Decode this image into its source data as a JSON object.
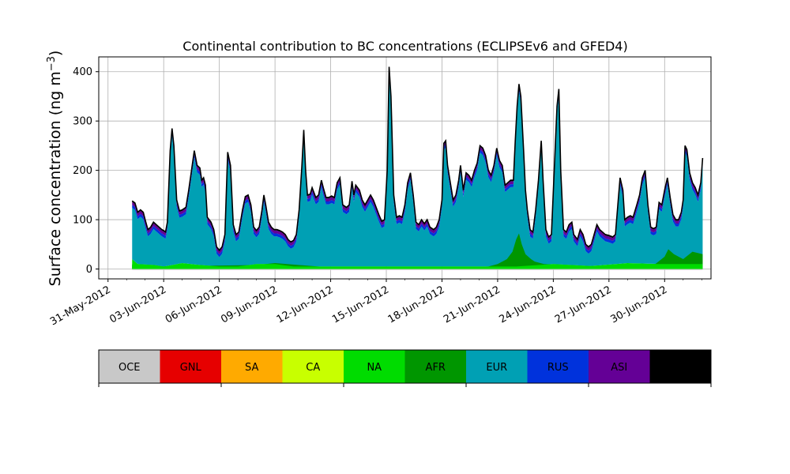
{
  "chart_data": {
    "type": "area",
    "stacked": true,
    "title": "Continental contribution to BC concentrations (ECLIPSEv6 and GFED4)",
    "ylabel": "Surface concentration (ng m",
    "ylabel_unit_exponent": "−3",
    "ylabel_close": ")",
    "xlabel": "",
    "ylim": [
      -20,
      430
    ],
    "yticks": [
      0,
      100,
      200,
      300,
      400
    ],
    "xlim_days": [
      -0.5,
      32.5
    ],
    "xtick_days": [
      0,
      3,
      6,
      9,
      12,
      15,
      18,
      21,
      24,
      27,
      30
    ],
    "xtick_labels": [
      "31-May-2012",
      "03-Jun-2012",
      "06-Jun-2012",
      "09-Jun-2012",
      "12-Jun-2012",
      "15-Jun-2012",
      "18-Jun-2012",
      "21-Jun-2012",
      "24-Jun-2012",
      "27-Jun-2012",
      "30-Jun-2012"
    ],
    "grid": true,
    "total_points": [
      [
        1.3,
        138
      ],
      [
        1.45,
        134
      ],
      [
        1.6,
        115
      ],
      [
        1.75,
        120
      ],
      [
        1.9,
        115
      ],
      [
        2.0,
        100
      ],
      [
        2.15,
        80
      ],
      [
        2.3,
        85
      ],
      [
        2.45,
        95
      ],
      [
        2.6,
        90
      ],
      [
        2.75,
        85
      ],
      [
        2.9,
        80
      ],
      [
        3.0,
        78
      ],
      [
        3.1,
        75
      ],
      [
        3.2,
        95
      ],
      [
        3.35,
        240
      ],
      [
        3.45,
        285
      ],
      [
        3.55,
        250
      ],
      [
        3.7,
        140
      ],
      [
        3.85,
        118
      ],
      [
        4.0,
        120
      ],
      [
        4.2,
        125
      ],
      [
        4.35,
        160
      ],
      [
        4.5,
        200
      ],
      [
        4.65,
        240
      ],
      [
        4.8,
        210
      ],
      [
        4.95,
        205
      ],
      [
        5.05,
        180
      ],
      [
        5.15,
        185
      ],
      [
        5.25,
        170
      ],
      [
        5.35,
        105
      ],
      [
        5.55,
        95
      ],
      [
        5.7,
        80
      ],
      [
        5.85,
        45
      ],
      [
        6.0,
        38
      ],
      [
        6.15,
        45
      ],
      [
        6.3,
        70
      ],
      [
        6.45,
        237
      ],
      [
        6.6,
        210
      ],
      [
        6.75,
        90
      ],
      [
        6.9,
        70
      ],
      [
        7.05,
        75
      ],
      [
        7.25,
        120
      ],
      [
        7.4,
        147
      ],
      [
        7.55,
        150
      ],
      [
        7.7,
        130
      ],
      [
        7.85,
        85
      ],
      [
        8.0,
        78
      ],
      [
        8.15,
        85
      ],
      [
        8.3,
        120
      ],
      [
        8.4,
        150
      ],
      [
        8.5,
        130
      ],
      [
        8.65,
        95
      ],
      [
        8.8,
        85
      ],
      [
        8.95,
        80
      ],
      [
        9.1,
        80
      ],
      [
        9.25,
        78
      ],
      [
        9.4,
        75
      ],
      [
        9.55,
        70
      ],
      [
        9.7,
        60
      ],
      [
        9.85,
        55
      ],
      [
        10.0,
        58
      ],
      [
        10.15,
        70
      ],
      [
        10.3,
        120
      ],
      [
        10.45,
        210
      ],
      [
        10.55,
        282
      ],
      [
        10.65,
        200
      ],
      [
        10.75,
        150
      ],
      [
        10.9,
        152
      ],
      [
        11.0,
        165
      ],
      [
        11.2,
        145
      ],
      [
        11.35,
        150
      ],
      [
        11.5,
        180
      ],
      [
        11.6,
        165
      ],
      [
        11.75,
        145
      ],
      [
        11.9,
        145
      ],
      [
        12.05,
        148
      ],
      [
        12.2,
        145
      ],
      [
        12.35,
        175
      ],
      [
        12.5,
        185
      ],
      [
        12.65,
        130
      ],
      [
        12.85,
        125
      ],
      [
        13.0,
        130
      ],
      [
        13.15,
        178
      ],
      [
        13.25,
        150
      ],
      [
        13.35,
        170
      ],
      [
        13.55,
        160
      ],
      [
        13.7,
        140
      ],
      [
        13.85,
        130
      ],
      [
        14.0,
        140
      ],
      [
        14.15,
        150
      ],
      [
        14.3,
        140
      ],
      [
        14.45,
        125
      ],
      [
        14.6,
        110
      ],
      [
        14.75,
        97
      ],
      [
        14.9,
        100
      ],
      [
        15.05,
        200
      ],
      [
        15.15,
        410
      ],
      [
        15.25,
        350
      ],
      [
        15.4,
        150
      ],
      [
        15.55,
        105
      ],
      [
        15.7,
        108
      ],
      [
        15.85,
        105
      ],
      [
        16.0,
        130
      ],
      [
        16.15,
        175
      ],
      [
        16.3,
        195
      ],
      [
        16.45,
        150
      ],
      [
        16.6,
        95
      ],
      [
        16.75,
        90
      ],
      [
        16.9,
        100
      ],
      [
        17.05,
        92
      ],
      [
        17.2,
        100
      ],
      [
        17.35,
        85
      ],
      [
        17.55,
        80
      ],
      [
        17.7,
        85
      ],
      [
        17.85,
        100
      ],
      [
        18.0,
        140
      ],
      [
        18.1,
        255
      ],
      [
        18.2,
        260
      ],
      [
        18.3,
        210
      ],
      [
        18.45,
        175
      ],
      [
        18.6,
        140
      ],
      [
        18.75,
        150
      ],
      [
        18.9,
        180
      ],
      [
        19.0,
        210
      ],
      [
        19.15,
        160
      ],
      [
        19.3,
        195
      ],
      [
        19.45,
        190
      ],
      [
        19.6,
        180
      ],
      [
        19.75,
        200
      ],
      [
        19.9,
        215
      ],
      [
        20.05,
        250
      ],
      [
        20.2,
        245
      ],
      [
        20.35,
        230
      ],
      [
        20.5,
        200
      ],
      [
        20.65,
        190
      ],
      [
        20.8,
        210
      ],
      [
        20.95,
        245
      ],
      [
        21.1,
        220
      ],
      [
        21.25,
        210
      ],
      [
        21.4,
        170
      ],
      [
        21.55,
        175
      ],
      [
        21.7,
        180
      ],
      [
        21.85,
        180
      ],
      [
        21.95,
        260
      ],
      [
        22.05,
        330
      ],
      [
        22.15,
        375
      ],
      [
        22.25,
        350
      ],
      [
        22.4,
        240
      ],
      [
        22.5,
        160
      ],
      [
        22.6,
        120
      ],
      [
        22.75,
        80
      ],
      [
        22.9,
        75
      ],
      [
        23.05,
        120
      ],
      [
        23.2,
        180
      ],
      [
        23.35,
        260
      ],
      [
        23.45,
        180
      ],
      [
        23.6,
        80
      ],
      [
        23.75,
        65
      ],
      [
        23.9,
        70
      ],
      [
        24.05,
        200
      ],
      [
        24.2,
        330
      ],
      [
        24.3,
        365
      ],
      [
        24.4,
        200
      ],
      [
        24.55,
        80
      ],
      [
        24.7,
        75
      ],
      [
        24.85,
        90
      ],
      [
        25.0,
        95
      ],
      [
        25.1,
        70
      ],
      [
        25.3,
        60
      ],
      [
        25.45,
        80
      ],
      [
        25.6,
        70
      ],
      [
        25.75,
        50
      ],
      [
        25.9,
        45
      ],
      [
        26.05,
        50
      ],
      [
        26.2,
        70
      ],
      [
        26.35,
        90
      ],
      [
        26.5,
        80
      ],
      [
        26.65,
        75
      ],
      [
        26.8,
        70
      ],
      [
        27.0,
        68
      ],
      [
        27.2,
        65
      ],
      [
        27.35,
        70
      ],
      [
        27.5,
        140
      ],
      [
        27.6,
        185
      ],
      [
        27.75,
        160
      ],
      [
        27.85,
        100
      ],
      [
        28.0,
        105
      ],
      [
        28.15,
        108
      ],
      [
        28.3,
        105
      ],
      [
        28.5,
        130
      ],
      [
        28.65,
        150
      ],
      [
        28.8,
        185
      ],
      [
        28.95,
        200
      ],
      [
        29.1,
        130
      ],
      [
        29.25,
        85
      ],
      [
        29.4,
        82
      ],
      [
        29.55,
        85
      ],
      [
        29.7,
        135
      ],
      [
        29.85,
        130
      ],
      [
        30.0,
        160
      ],
      [
        30.15,
        185
      ],
      [
        30.3,
        145
      ],
      [
        30.45,
        110
      ],
      [
        30.6,
        100
      ],
      [
        30.75,
        100
      ],
      [
        30.9,
        115
      ],
      [
        31.0,
        140
      ],
      [
        31.1,
        250
      ],
      [
        31.2,
        242
      ],
      [
        31.35,
        195
      ],
      [
        31.5,
        175
      ],
      [
        31.65,
        165
      ],
      [
        31.8,
        150
      ],
      [
        31.95,
        175
      ],
      [
        32.05,
        225
      ]
    ],
    "lower_layers": {
      "na": [
        [
          1.3,
          20
        ],
        [
          1.6,
          10
        ],
        [
          2.5,
          8
        ],
        [
          3.0,
          5
        ],
        [
          4.0,
          12
        ],
        [
          5.0,
          8
        ],
        [
          6.0,
          5
        ],
        [
          7.0,
          5
        ],
        [
          8.0,
          10
        ],
        [
          9.0,
          10
        ],
        [
          10.0,
          5
        ],
        [
          12.0,
          5
        ],
        [
          14.0,
          5
        ],
        [
          16.0,
          5
        ],
        [
          18.0,
          5
        ],
        [
          20.0,
          5
        ],
        [
          22.0,
          5
        ],
        [
          24.0,
          10
        ],
        [
          26.0,
          6
        ],
        [
          28.0,
          12
        ],
        [
          30.0,
          10
        ],
        [
          31.5,
          15
        ],
        [
          32.05,
          20
        ]
      ],
      "afr": [
        [
          1.3,
          8
        ],
        [
          2.0,
          4
        ],
        [
          4.0,
          6
        ],
        [
          8.0,
          8
        ],
        [
          9.0,
          12
        ],
        [
          12.0,
          3
        ],
        [
          16.0,
          3
        ],
        [
          19.0,
          3
        ],
        [
          20.5,
          5
        ],
        [
          21.0,
          10
        ],
        [
          21.5,
          20
        ],
        [
          21.8,
          35
        ],
        [
          22.0,
          60
        ],
        [
          22.15,
          72
        ],
        [
          22.3,
          50
        ],
        [
          22.5,
          30
        ],
        [
          22.8,
          20
        ],
        [
          23.0,
          15
        ],
        [
          23.5,
          10
        ],
        [
          24.5,
          8
        ],
        [
          26.0,
          3
        ],
        [
          28.0,
          5
        ],
        [
          29.5,
          10
        ],
        [
          30.0,
          25
        ],
        [
          30.2,
          40
        ],
        [
          30.5,
          30
        ],
        [
          31.0,
          20
        ],
        [
          31.5,
          35
        ],
        [
          32.05,
          30
        ]
      ],
      "asi_extra": 6,
      "rus_extra": 6,
      "aus_extra": 2
    }
  },
  "legend": {
    "items": [
      {
        "label": "OCE",
        "color": "#c8c8c8"
      },
      {
        "label": "GNL",
        "color": "#e60000"
      },
      {
        "label": "SA",
        "color": "#ffaa00"
      },
      {
        "label": "CA",
        "color": "#c8ff00"
      },
      {
        "label": "NA",
        "color": "#00dc00"
      },
      {
        "label": "AFR",
        "color": "#009600"
      },
      {
        "label": "EUR",
        "color": "#00a0b4"
      },
      {
        "label": "RUS",
        "color": "#0032dc"
      },
      {
        "label": "ASI",
        "color": "#640096"
      },
      {
        "label": "AUS",
        "color": "#000000"
      }
    ]
  }
}
